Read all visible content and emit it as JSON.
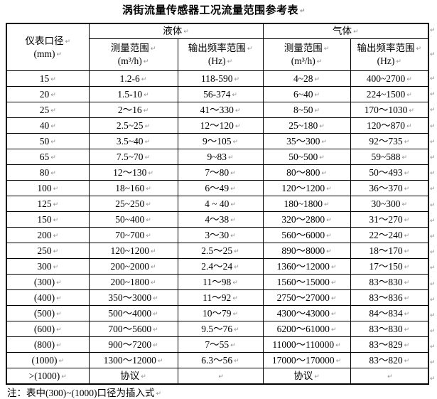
{
  "title": "涡街流量传感器工况流量范围参考表",
  "table": {
    "header": {
      "diameter_label": "仪表口径",
      "diameter_unit": "(mm)",
      "liquid_group_label": "液体",
      "gas_group_label": "气体"
    },
    "columns": [
      {
        "label": "测量范围",
        "unit": "(m³/h)"
      },
      {
        "label": "输出频率范围",
        "unit": "(Hz)"
      },
      {
        "label": "测量范围",
        "unit": "(m³/h)"
      },
      {
        "label": "输出频率范围",
        "unit": "(Hz)"
      }
    ],
    "rows": [
      {
        "diameter": "15",
        "liquid_range": "1.2-6",
        "liquid_freq": "118-590",
        "gas_range": "4~28",
        "gas_freq": "400~2700"
      },
      {
        "diameter": "20",
        "liquid_range": "1.5-10",
        "liquid_freq": "56-374",
        "gas_range": "6~40",
        "gas_freq": "224~1500"
      },
      {
        "diameter": "25",
        "liquid_range": "2～16",
        "liquid_freq": "41～330",
        "gas_range": "8~50",
        "gas_freq": "170～1030"
      },
      {
        "diameter": "40",
        "liquid_range": "2.5~25",
        "liquid_freq": "12～120",
        "gas_range": "25~180",
        "gas_freq": "120～870"
      },
      {
        "diameter": "50",
        "liquid_range": "3.5~40",
        "liquid_freq": "9～105",
        "gas_range": "35～300",
        "gas_freq": "92～735"
      },
      {
        "diameter": "65",
        "liquid_range": "7.5~70",
        "liquid_freq": "9~83",
        "gas_range": "50~500",
        "gas_freq": "59~588"
      },
      {
        "diameter": "80",
        "liquid_range": "12～130",
        "liquid_freq": "7～80",
        "gas_range": "80～800",
        "gas_freq": "50～493"
      },
      {
        "diameter": "100",
        "liquid_range": "18~160",
        "liquid_freq": "6～49",
        "gas_range": "120～1200",
        "gas_freq": "36～370"
      },
      {
        "diameter": "125",
        "liquid_range": "25~250",
        "liquid_freq": "4 ~ 40",
        "gas_range": "180~1800",
        "gas_freq": "30~300"
      },
      {
        "diameter": "150",
        "liquid_range": "50~400",
        "liquid_freq": "4～38",
        "gas_range": "320～2800",
        "gas_freq": "31～270"
      },
      {
        "diameter": "200",
        "liquid_range": "70~700",
        "liquid_freq": "3～30",
        "gas_range": "560～6000",
        "gas_freq": "22～240"
      },
      {
        "diameter": "250",
        "liquid_range": "120~1200",
        "liquid_freq": "2.5～25",
        "gas_range": "890～8000",
        "gas_freq": "18～170"
      },
      {
        "diameter": "300",
        "liquid_range": "200~2000",
        "liquid_freq": "2.4～24",
        "gas_range": "1360～12000",
        "gas_freq": "17～150"
      },
      {
        "diameter": "(300)",
        "liquid_range": "200~1800",
        "liquid_freq": "11～98",
        "gas_range": "1560～15000",
        "gas_freq": "83～830"
      },
      {
        "diameter": "(400)",
        "liquid_range": "350～3000",
        "liquid_freq": "11～92",
        "gas_range": "2750～27000",
        "gas_freq": "83～836"
      },
      {
        "diameter": "(500)",
        "liquid_range": "500～4000",
        "liquid_freq": "10～79",
        "gas_range": "4300～43000",
        "gas_freq": "84～834"
      },
      {
        "diameter": "(600)",
        "liquid_range": "700～5600",
        "liquid_freq": "9.5～76",
        "gas_range": "6200～61000",
        "gas_freq": "83～830"
      },
      {
        "diameter": "(800)",
        "liquid_range": "900～7200",
        "liquid_freq": "7～55",
        "gas_range": "11000～110000",
        "gas_freq": "83～829"
      },
      {
        "diameter": "(1000)",
        "liquid_range": "1300～12000",
        "liquid_freq": "6.3～56",
        "gas_range": "17000～170000",
        "gas_freq": "83～820"
      },
      {
        "diameter": ">(1000)",
        "liquid_range": "协议",
        "liquid_freq": "",
        "gas_range": "协议",
        "gas_freq": ""
      }
    ]
  },
  "note": "注：表中(300)~(1000)口径为插入式"
}
